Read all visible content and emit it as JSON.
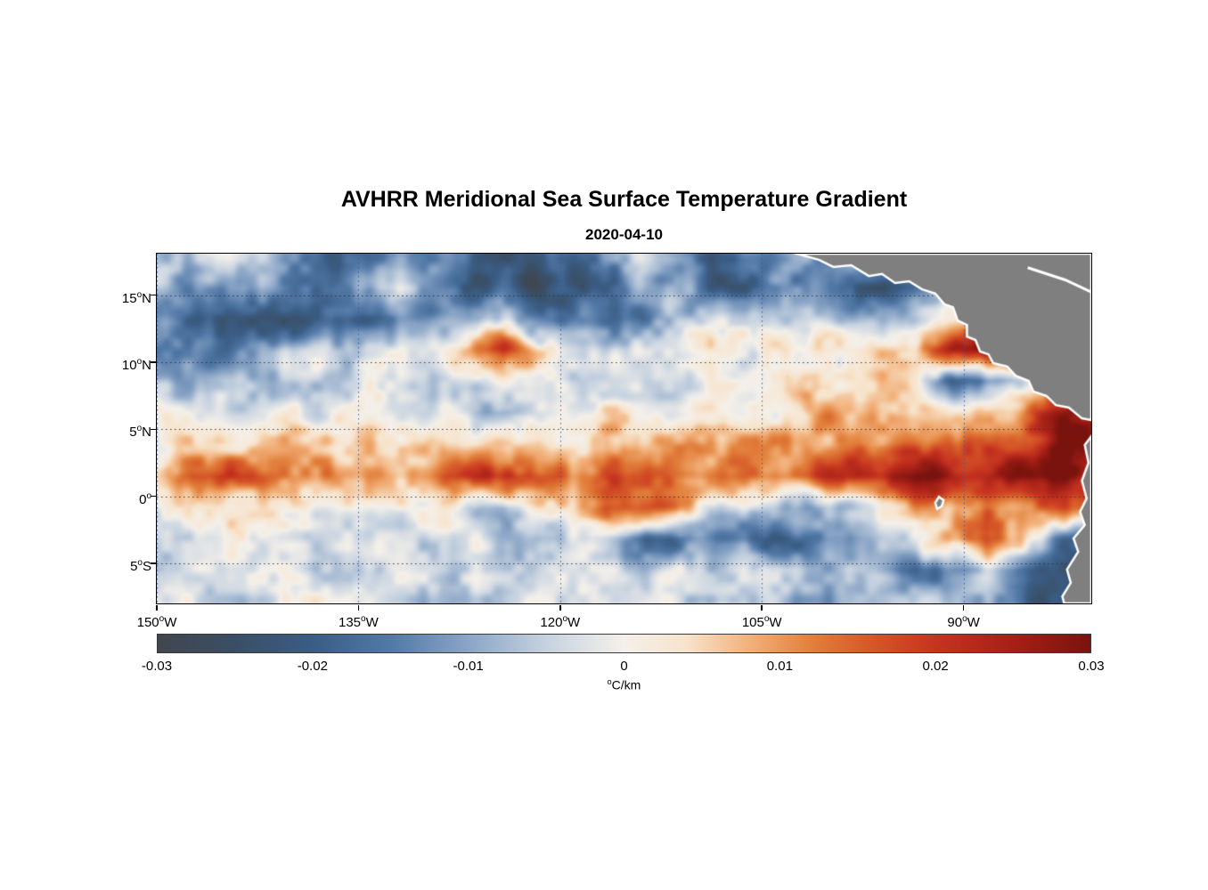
{
  "title": "AVHRR Meridional Sea Surface Temperature Gradient",
  "subtitle": "2020-04-10",
  "chart_data": {
    "type": "heatmap",
    "title": "AVHRR Meridional Sea Surface Temperature Gradient",
    "subtitle": "2020-04-10",
    "units": "°C/km",
    "grid_on": true,
    "lon_range": [
      -150,
      -80.5
    ],
    "lat_range": [
      -8,
      18.1
    ],
    "deg_symbol": "o",
    "lon_ticks": [
      {
        "value": -150,
        "num": "150",
        "suf": "W"
      },
      {
        "value": -135,
        "num": "135",
        "suf": "W"
      },
      {
        "value": -120,
        "num": "120",
        "suf": "W"
      },
      {
        "value": -105,
        "num": "105",
        "suf": "W"
      },
      {
        "value": -90,
        "num": "90",
        "suf": "W"
      }
    ],
    "lat_ticks": [
      {
        "value": 15,
        "num": "15",
        "suf": "N"
      },
      {
        "value": 10,
        "num": "10",
        "suf": "N"
      },
      {
        "value": 5,
        "num": "5",
        "suf": "N"
      },
      {
        "value": 0,
        "num": "0",
        "suf": ""
      },
      {
        "value": -5,
        "num": "5",
        "suf": "S"
      }
    ],
    "colorbar": {
      "range": [
        -0.03,
        0.03
      ],
      "tick_labels": [
        "-0.03",
        "-0.02",
        "-0.01",
        "0",
        "0.01",
        "0.02",
        "0.03"
      ],
      "tick_values": [
        -0.03,
        -0.02,
        -0.01,
        0,
        0.01,
        0.02,
        0.03
      ],
      "label_sup": "o",
      "label_text": "C/km",
      "stops": [
        {
          "v": -0.03,
          "c": "#41464e"
        },
        {
          "v": -0.025,
          "c": "#3a4f66"
        },
        {
          "v": -0.02,
          "c": "#3a5d85"
        },
        {
          "v": -0.015,
          "c": "#5379a7"
        },
        {
          "v": -0.01,
          "c": "#8aa5c6"
        },
        {
          "v": -0.005,
          "c": "#c6d2e0"
        },
        {
          "v": 0.0,
          "c": "#f4f0ea"
        },
        {
          "v": 0.004,
          "c": "#f7e3cb"
        },
        {
          "v": 0.008,
          "c": "#f2b27c"
        },
        {
          "v": 0.012,
          "c": "#e2803c"
        },
        {
          "v": 0.016,
          "c": "#d55627"
        },
        {
          "v": 0.02,
          "c": "#c63420"
        },
        {
          "v": 0.025,
          "c": "#a52017"
        },
        {
          "v": 0.03,
          "c": "#7a130e"
        }
      ]
    },
    "land": {
      "color": "#7f7f7f",
      "coast_color": "#ffffff",
      "polygons": {
        "central_america": [
          [
            0.685,
            0.0
          ],
          [
            0.709,
            0.018
          ],
          [
            0.724,
            0.038
          ],
          [
            0.743,
            0.033
          ],
          [
            0.762,
            0.064
          ],
          [
            0.776,
            0.058
          ],
          [
            0.79,
            0.084
          ],
          [
            0.805,
            0.079
          ],
          [
            0.819,
            0.102
          ],
          [
            0.833,
            0.114
          ],
          [
            0.843,
            0.145
          ],
          [
            0.852,
            0.153
          ],
          [
            0.857,
            0.191
          ],
          [
            0.867,
            0.204
          ],
          [
            0.867,
            0.237
          ],
          [
            0.876,
            0.247
          ],
          [
            0.881,
            0.28
          ],
          [
            0.89,
            0.288
          ],
          [
            0.895,
            0.313
          ],
          [
            0.91,
            0.323
          ],
          [
            0.919,
            0.349
          ],
          [
            0.933,
            0.364
          ],
          [
            0.938,
            0.394
          ],
          [
            0.952,
            0.407
          ],
          [
            0.962,
            0.433
          ],
          [
            0.976,
            0.44
          ],
          [
            0.99,
            0.471
          ],
          [
            1.0,
            0.476
          ],
          [
            1.0,
            0.0
          ]
        ],
        "south_america": [
          [
            1.0,
            0.522
          ],
          [
            0.993,
            0.547
          ],
          [
            0.997,
            0.598
          ],
          [
            0.99,
            0.649
          ],
          [
            0.995,
            0.7
          ],
          [
            0.988,
            0.738
          ],
          [
            0.993,
            0.776
          ],
          [
            0.981,
            0.814
          ],
          [
            0.986,
            0.852
          ],
          [
            0.974,
            0.903
          ],
          [
            0.978,
            0.941
          ],
          [
            0.969,
            0.98
          ],
          [
            0.971,
            1.0
          ],
          [
            1.0,
            1.0
          ]
        ],
        "galapagos": [
          [
            0.837,
            0.695
          ],
          [
            0.842,
            0.705
          ],
          [
            0.84,
            0.722
          ],
          [
            0.835,
            0.73
          ],
          [
            0.833,
            0.712
          ]
        ]
      },
      "coast_lines": [
        [
          [
            0.932,
            0.04
          ],
          [
            0.972,
            0.075
          ],
          [
            1.0,
            0.11
          ]
        ]
      ]
    },
    "field": {
      "rows": 12,
      "cols": 28,
      "values": [
        [
          -0.004,
          -0.006,
          -0.003,
          -0.008,
          -0.012,
          -0.02,
          -0.015,
          -0.008,
          -0.01,
          -0.018,
          -0.025,
          -0.022,
          -0.02,
          -0.012,
          -0.006,
          -0.015,
          -0.02,
          -0.012,
          -0.01,
          -0.015,
          -0.01,
          -0.005,
          0,
          0,
          0,
          0,
          0,
          0
        ],
        [
          -0.006,
          -0.01,
          -0.015,
          -0.01,
          -0.018,
          -0.022,
          -0.012,
          -0.006,
          -0.015,
          -0.022,
          -0.02,
          -0.025,
          -0.022,
          -0.018,
          -0.01,
          -0.008,
          -0.018,
          -0.022,
          -0.015,
          -0.008,
          -0.02,
          -0.025,
          -0.01,
          -0.003,
          0,
          0,
          0,
          0
        ],
        [
          -0.008,
          -0.02,
          -0.026,
          -0.022,
          -0.025,
          -0.018,
          -0.022,
          -0.015,
          -0.01,
          -0.012,
          -0.008,
          -0.01,
          -0.015,
          -0.012,
          -0.018,
          -0.01,
          -0.006,
          -0.004,
          -0.008,
          -0.005,
          -0.008,
          -0.012,
          -0.004,
          0.002,
          0.01,
          0.02,
          0.004,
          -0.005
        ],
        [
          -0.015,
          -0.012,
          -0.018,
          -0.008,
          -0.004,
          -0.006,
          -0.003,
          -0.004,
          -0.002,
          0.006,
          0.022,
          0.004,
          -0.004,
          -0.006,
          -0.002,
          -0.003,
          0.004,
          -0.002,
          0.003,
          0.006,
          0.002,
          0.004,
          0.008,
          0.025,
          0.028,
          0.022,
          0.008,
          0.002
        ],
        [
          -0.006,
          -0.01,
          -0.004,
          -0.006,
          -0.002,
          -0.004,
          -0.003,
          -0.002,
          -0.004,
          -0.002,
          0.002,
          -0.003,
          -0.006,
          -0.002,
          -0.004,
          -0.002,
          0.002,
          0.004,
          0.002,
          0.006,
          0.004,
          0.006,
          0.002,
          -0.02,
          -0.015,
          -0.008,
          0.004,
          0.01
        ],
        [
          -0.003,
          -0.004,
          -0.002,
          -0.003,
          -0.001,
          -0.002,
          -0.004,
          -0.002,
          -0.003,
          -0.006,
          -0.012,
          -0.008,
          -0.002,
          0.002,
          0.001,
          -0.002,
          0.003,
          0.005,
          0.004,
          0.008,
          0.01,
          0.006,
          0.004,
          0.002,
          0.006,
          0.012,
          0.025,
          0.028
        ],
        [
          0.002,
          0.004,
          0.003,
          0.002,
          0.004,
          0.006,
          0.004,
          0.003,
          0.006,
          0.004,
          0.008,
          0.006,
          0.004,
          0.008,
          0.006,
          0.008,
          0.01,
          0.012,
          0.008,
          0.01,
          0.012,
          0.01,
          0.015,
          0.02,
          0.015,
          0.02,
          0.028,
          0.03
        ],
        [
          0.006,
          0.016,
          0.02,
          0.015,
          0.008,
          0.012,
          0.01,
          0.008,
          0.014,
          0.02,
          0.022,
          0.018,
          0.012,
          0.018,
          0.016,
          0.012,
          0.014,
          0.016,
          0.015,
          0.018,
          0.022,
          0.026,
          0.03,
          0.028,
          0.025,
          0.028,
          0.03,
          0.025
        ],
        [
          0.002,
          0.004,
          0.002,
          0.001,
          0.003,
          0.002,
          0.004,
          0.002,
          0.003,
          -0.004,
          -0.01,
          0.004,
          0.006,
          0.015,
          0.018,
          0.012,
          -0.006,
          0.002,
          -0.008,
          -0.012,
          -0.006,
          0.004,
          0.01,
          0.004,
          0.012,
          0.008,
          0.015,
          0.02
        ],
        [
          -0.002,
          -0.004,
          -0.002,
          -0.003,
          -0.001,
          -0.002,
          -0.003,
          -0.002,
          -0.004,
          -0.002,
          -0.006,
          -0.01,
          -0.004,
          -0.008,
          -0.015,
          -0.02,
          -0.012,
          -0.016,
          -0.018,
          -0.015,
          -0.012,
          -0.006,
          -0.002,
          0.006,
          0.015,
          0.004,
          -0.018,
          -0.022
        ],
        [
          -0.003,
          -0.002,
          -0.004,
          -0.002,
          -0.003,
          -0.004,
          -0.002,
          -0.004,
          -0.002,
          -0.004,
          -0.006,
          -0.004,
          -0.002,
          -0.004,
          -0.006,
          -0.004,
          -0.008,
          -0.006,
          -0.004,
          -0.008,
          -0.006,
          -0.01,
          -0.015,
          -0.012,
          -0.01,
          -0.015,
          -0.02,
          -0.025
        ],
        [
          -0.002,
          -0.003,
          -0.002,
          -0.004,
          -0.002,
          -0.003,
          -0.002,
          -0.003,
          -0.004,
          -0.002,
          -0.004,
          -0.003,
          -0.002,
          -0.004,
          -0.003,
          -0.004,
          -0.006,
          -0.004,
          -0.008,
          -0.006,
          -0.008,
          -0.01,
          -0.008,
          -0.012,
          -0.01,
          -0.015,
          -0.022,
          -0.028
        ]
      ]
    }
  }
}
